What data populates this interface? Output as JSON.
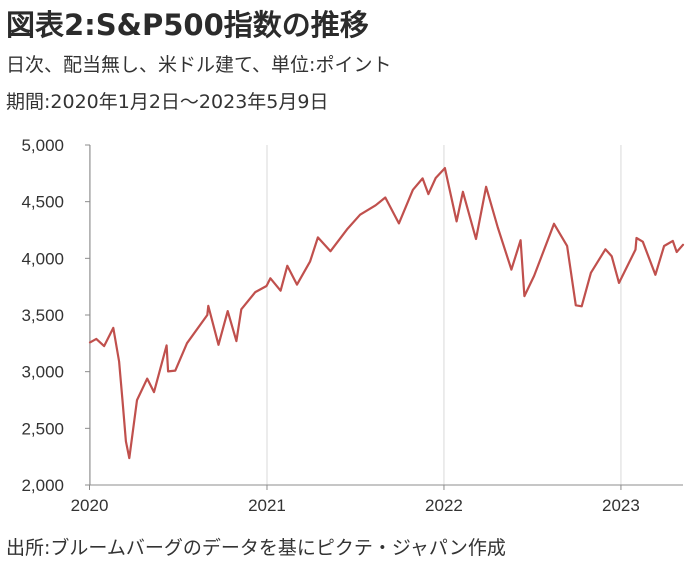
{
  "header": {
    "title": "図表2:S&P500指数の推移",
    "subtitle": "日次、配当無し、米ドル建て、単位:ポイント",
    "period": "期間:2020年1月2日～2023年5月9日"
  },
  "footer": {
    "source": "出所:ブルームバーグのデータを基にピクテ・ジャパン作成"
  },
  "colors": {
    "line": "#c0504d",
    "grid": "#d9d9d9",
    "axis": "#8c8c8c"
  },
  "chart_data": {
    "type": "line",
    "title": "図表2:S&P500指数の推移",
    "xlabel": "",
    "ylabel": "",
    "ylim": [
      2000,
      5000
    ],
    "xlim": [
      "2020-01-02",
      "2023-05-09"
    ],
    "grid": "vertical year lines",
    "x_ticks": [
      "2020",
      "2021",
      "2022",
      "2023"
    ],
    "y_ticks": [
      "2,000",
      "2,500",
      "3,000",
      "3,500",
      "4,000",
      "4,500",
      "5,000"
    ],
    "series": [
      {
        "x": [
          "2020-01-02",
          "2020-01-15",
          "2020-01-31",
          "2020-02-19",
          "2020-03-02",
          "2020-03-09",
          "2020-03-16",
          "2020-03-23",
          "2020-04-08",
          "2020-04-29",
          "2020-05-13",
          "2020-06-08",
          "2020-06-11",
          "2020-06-26",
          "2020-07-20",
          "2020-08-31",
          "2020-09-02",
          "2020-09-23",
          "2020-10-12",
          "2020-10-30",
          "2020-11-09",
          "2020-12-08",
          "2020-12-31",
          "2021-01-08",
          "2021-01-29",
          "2021-02-12",
          "2021-03-04",
          "2021-03-31",
          "2021-04-16",
          "2021-05-12",
          "2021-06-15",
          "2021-07-12",
          "2021-08-13",
          "2021-09-02",
          "2021-09-30",
          "2021-10-29",
          "2021-11-18",
          "2021-11-30",
          "2021-12-15",
          "2022-01-03",
          "2022-01-27",
          "2022-02-09",
          "2022-03-08",
          "2022-03-29",
          "2022-04-22",
          "2022-05-20",
          "2022-06-08",
          "2022-06-16",
          "2022-07-06",
          "2022-08-16",
          "2022-09-12",
          "2022-09-30",
          "2022-10-12",
          "2022-10-31",
          "2022-11-30",
          "2022-12-13",
          "2022-12-28",
          "2023-01-31",
          "2023-02-02",
          "2023-02-15",
          "2023-03-13",
          "2023-03-31",
          "2023-04-18",
          "2023-04-26",
          "2023-05-09"
        ],
        "y": [
          3258,
          3289,
          3226,
          3386,
          3090,
          2746,
          2386,
          2237,
          2749,
          2939,
          2820,
          3232,
          3002,
          3009,
          3251,
          3500,
          3580,
          3237,
          3534,
          3270,
          3550,
          3702,
          3756,
          3824,
          3714,
          3934,
          3768,
          3973,
          4185,
          4063,
          4255,
          4385,
          4468,
          4537,
          4308,
          4605,
          4705,
          4567,
          4709,
          4796,
          4326,
          4587,
          4171,
          4631,
          4272,
          3901,
          4160,
          3667,
          3845,
          4305,
          4110,
          3586,
          3577,
          3872,
          4080,
          4019,
          3783,
          4077,
          4179,
          4147,
          3855,
          4109,
          4154,
          4056,
          4119
        ]
      }
    ]
  }
}
